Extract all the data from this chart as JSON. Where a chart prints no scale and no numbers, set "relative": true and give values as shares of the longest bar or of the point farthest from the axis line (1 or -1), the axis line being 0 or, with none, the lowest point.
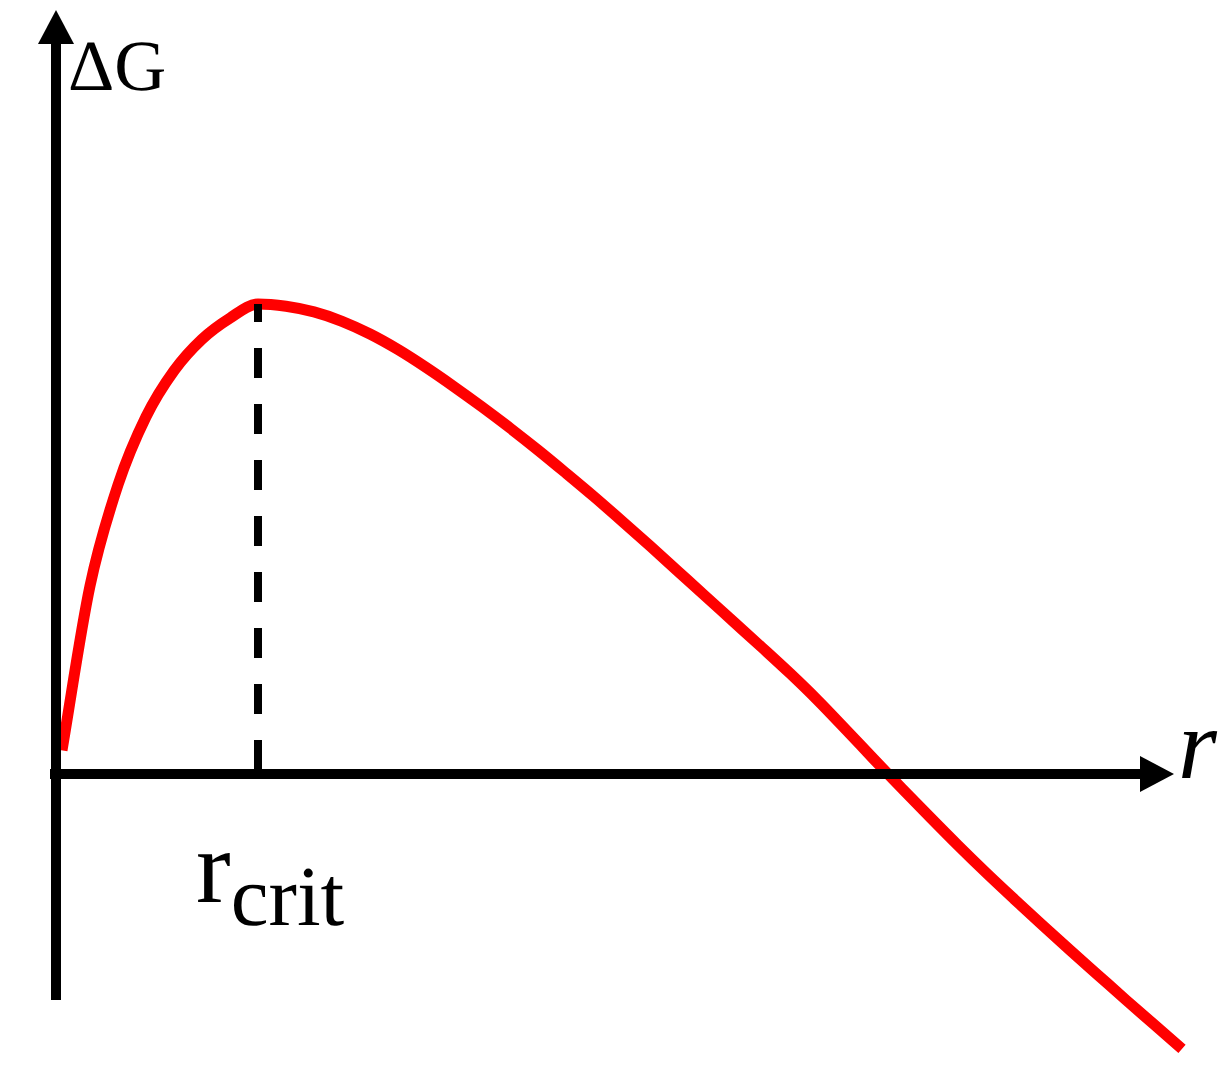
{
  "chart_data": {
    "type": "line",
    "xlabel": "r",
    "ylabel": "ΔG",
    "relative": true,
    "tick_labels": false,
    "marker": "none",
    "categories": [
      null,
      null,
      null,
      null,
      null,
      null,
      null,
      null,
      null,
      null,
      null,
      null,
      null,
      null,
      null,
      null,
      null,
      null,
      null,
      null,
      null,
      null,
      null,
      null,
      null,
      null,
      null,
      null,
      null,
      null,
      null,
      null,
      null,
      null,
      null,
      null,
      null,
      null,
      null,
      null,
      null
    ],
    "series": [
      {
        "color": "#ff0000",
        "values": [
          0.05,
          0.4,
          0.615,
          0.76,
          0.858,
          0.925,
          0.97,
          1,
          0.995,
          0.983,
          0.963,
          0.936,
          0.903,
          0.865,
          0.824,
          0.781,
          0.736,
          0.689,
          0.64,
          0.59,
          0.538,
          0.485,
          0.431,
          0.377,
          0.323,
          0.269,
          0.214,
          0.156,
          0.094,
          0.031,
          -0.031,
          -0.092,
          -0.152,
          -0.21,
          -0.266,
          -0.321,
          -0.375,
          -0.428,
          -0.481,
          -0.533,
          -0.585
        ]
      }
    ],
    "ref_lines": [
      {
        "axis": "x",
        "label": "r$_{crit}$",
        "line_style": "dashed",
        "color": "#000000"
      }
    ]
  }
}
